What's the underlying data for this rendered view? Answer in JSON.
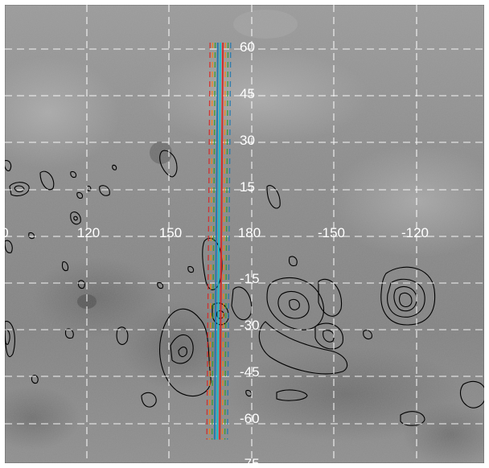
{
  "map": {
    "projection": "equirectangular",
    "basemap": "grayscale lunar surface",
    "colors": {
      "grid": "#ffffff",
      "contours": "#000000",
      "labels": "#ffffff",
      "track_lines": [
        "#d62728",
        "#ff7f0e",
        "#2ca02c",
        "#1f77b4",
        "#17becf"
      ]
    },
    "grid": {
      "style": "dashed",
      "visible": true
    },
    "latitude_labels": [
      "60",
      "45",
      "30",
      "15",
      "-15",
      "-30",
      "-45",
      "-60",
      "-75"
    ],
    "longitude_labels": [
      "0",
      "120",
      "150",
      "180",
      "-150",
      "-120"
    ],
    "track": {
      "center_longitude": 180,
      "latitude_range": [
        -65,
        62
      ],
      "line_count": 9
    }
  }
}
